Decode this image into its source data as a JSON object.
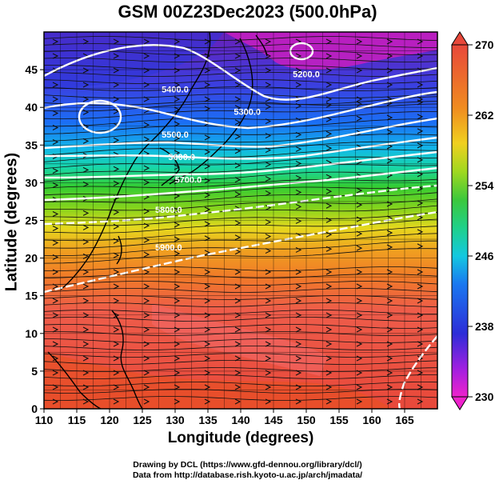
{
  "title": "GSM 00Z23Dec2023 (500.0hPa)",
  "xlabel": "Longitude (degrees)",
  "ylabel": "Latitude  (degrees)",
  "credit_line1": "Drawing by DCL (https://www.gfd-dennou.org/library/dcl/)",
  "credit_line2": "Data from http://database.rish.kyoto-u.ac.jp/arch/jmadata/",
  "chart_data": {
    "type": "heatmap",
    "title": "GSM 00Z23Dec2023 (500.0hPa)",
    "xlabel": "Longitude (degrees)",
    "ylabel": "Latitude  (degrees)",
    "xlim": [
      110,
      170
    ],
    "ylim": [
      0,
      50
    ],
    "x_ticks": [
      110,
      115,
      120,
      125,
      130,
      135,
      140,
      145,
      150,
      155,
      160,
      165
    ],
    "y_ticks": [
      0,
      5,
      10,
      15,
      20,
      25,
      30,
      35,
      40,
      45
    ],
    "colorbar": {
      "range": [
        230,
        270
      ],
      "ticks": [
        230,
        238,
        246,
        254,
        262,
        270
      ],
      "position": "right"
    },
    "contour_labels": [
      {
        "text": "5200.0",
        "lon": 150,
        "lat": 44
      },
      {
        "text": "5300.0",
        "lon": 141,
        "lat": 39
      },
      {
        "text": "5400.0",
        "lon": 130,
        "lat": 42
      },
      {
        "text": "5500.0",
        "lon": 130,
        "lat": 36
      },
      {
        "text": "5600.0",
        "lon": 131,
        "lat": 33
      },
      {
        "text": "5700.0",
        "lon": 132,
        "lat": 30
      },
      {
        "text": "5800.0",
        "lon": 129,
        "lat": 26
      },
      {
        "text": "5900.0",
        "lon": 129,
        "lat": 21
      }
    ],
    "grid": true
  }
}
